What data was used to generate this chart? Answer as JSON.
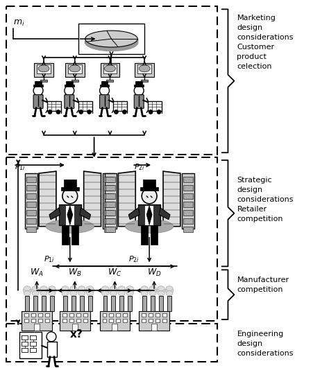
{
  "bg_color": "#ffffff",
  "text_color": "#000000",
  "section1_label": "Marketing\ndesign\nconsiderations\nCustomer\nproduct\ncelection",
  "section2_label": "Strategic\ndesign\nconsiderations\nRetailer\ncompetition",
  "section3_label": "Manufacturer\ncompetition",
  "section4_label": "Engineering\ndesign\nconsiderations",
  "mi_label": "$m_i$",
  "P1i_top": "$P_{1i}$",
  "P2i_top": "$P_{2i}$",
  "P1i_bot": "$P_{1i}$",
  "P2i_bot": "$P_{2i}$",
  "WA_label": "$W_A$",
  "WB_label": "$W_B$",
  "WC_label": "$W_C$",
  "WD_label": "$W_D$",
  "x_label": "x?",
  "fig_w": 4.74,
  "fig_h": 5.31,
  "dpi": 100
}
